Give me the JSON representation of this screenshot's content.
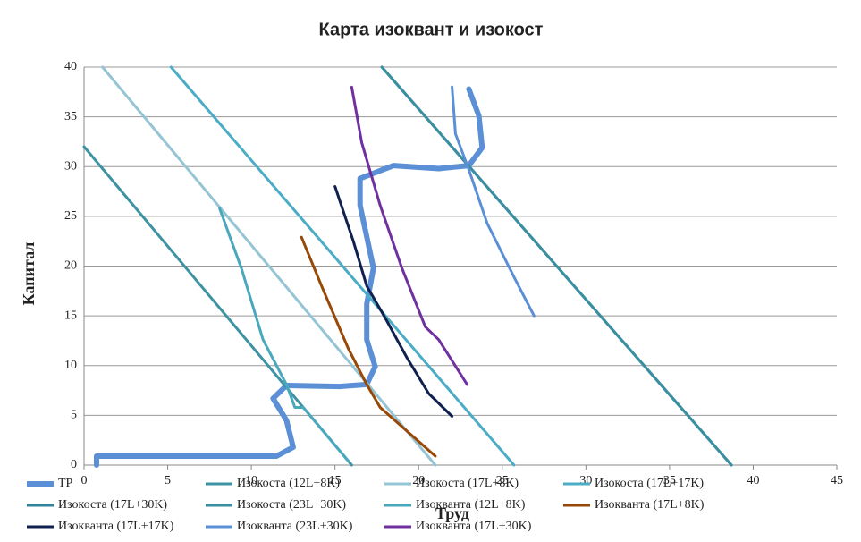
{
  "chart_data": {
    "type": "line",
    "title": "Карта изоквант и изокост",
    "x_label": "Труд",
    "y_label": "Капитал",
    "xlim": [
      0,
      45
    ],
    "xticks": [
      0,
      5,
      10,
      15,
      20,
      25,
      30,
      35,
      40,
      45
    ],
    "ylim": [
      0,
      40
    ],
    "yticks": [
      0,
      5,
      10,
      15,
      20,
      25,
      30,
      35,
      40
    ],
    "grid": true,
    "series": [
      {
        "name": "ТР",
        "color": "#5b8fd6",
        "width": 6,
        "x": [
          0.75,
          0.75,
          11.5,
          12.5,
          12.1,
          11.3,
          12.1,
          15.3,
          16.9,
          17.4,
          16.9,
          16.9,
          17.3,
          16.5,
          16.5,
          18.5,
          21.2,
          23,
          23.8,
          23.6,
          23
        ],
        "values": [
          0,
          0.9,
          0.9,
          1.8,
          4.5,
          6.7,
          8,
          7.9,
          8.1,
          9.9,
          12.6,
          16.2,
          19.8,
          26.1,
          28.8,
          30.1,
          29.8,
          30.1,
          31.9,
          35.1,
          37.8
        ]
      },
      {
        "name": "Изокоста (12L+8K)",
        "color": "#3d93a3",
        "width": 3,
        "x": [
          0,
          16
        ],
        "values": [
          32,
          0
        ]
      },
      {
        "name": "Изокоста (17L+8K)",
        "color": "#95c4d4",
        "width": 3,
        "x": [
          1.1,
          21
        ],
        "values": [
          40,
          0
        ]
      },
      {
        "name": "Изокоста (17L+17K)",
        "color": "#4bacc6",
        "width": 3,
        "x": [
          5.2,
          25.7
        ],
        "values": [
          40,
          0
        ]
      },
      {
        "name": "Изокоста (17L+30K)",
        "color": "#31849b",
        "width": 3,
        "x": [
          17.8,
          38.7
        ],
        "values": [
          40,
          0
        ]
      },
      {
        "name": "Изокоста (23L+30K)",
        "color": "#3a8fa0",
        "width": 3,
        "x": [
          17.8,
          38.7
        ],
        "values": [
          40,
          0
        ]
      },
      {
        "name": "Изокванта (12L+8K)",
        "color": "#4aa8bd",
        "width": 3,
        "x": [
          8.1,
          9.4,
          10.7,
          12.1,
          12.6,
          13.1,
          14.2,
          15.8
        ],
        "values": [
          25.8,
          19.8,
          12.6,
          8.1,
          5.8,
          5.8,
          3.6,
          0.4
        ]
      },
      {
        "name": "Изокванта (17L+8K)",
        "color": "#984807",
        "width": 3,
        "x": [
          13,
          14.2,
          15.8,
          16.9,
          17.7,
          21
        ],
        "values": [
          22.9,
          18,
          11.7,
          8.1,
          5.8,
          0.9
        ]
      },
      {
        "name": "Изокванта (17L+17K)",
        "color": "#10214f",
        "width": 3,
        "x": [
          15,
          16.1,
          16.9,
          18,
          19.3,
          20.6,
          22
        ],
        "values": [
          28,
          22.5,
          18,
          14.8,
          10.8,
          7.2,
          4.9
        ]
      },
      {
        "name": "Изокванта (23L+30K)",
        "color": "#5b8fd6",
        "width": 3,
        "x": [
          22,
          22.2,
          23,
          24.1,
          25.7,
          26.9
        ],
        "values": [
          38,
          33.3,
          29.7,
          24.3,
          18.9,
          15
        ]
      },
      {
        "name": "Изокванта (17L+30K)",
        "color": "#7030a0",
        "width": 3,
        "x": [
          16,
          16.6,
          17.7,
          19,
          20.4,
          21.2,
          22.9
        ],
        "values": [
          38,
          32.4,
          26.1,
          19.8,
          13.9,
          12.6,
          8.1
        ]
      }
    ]
  }
}
